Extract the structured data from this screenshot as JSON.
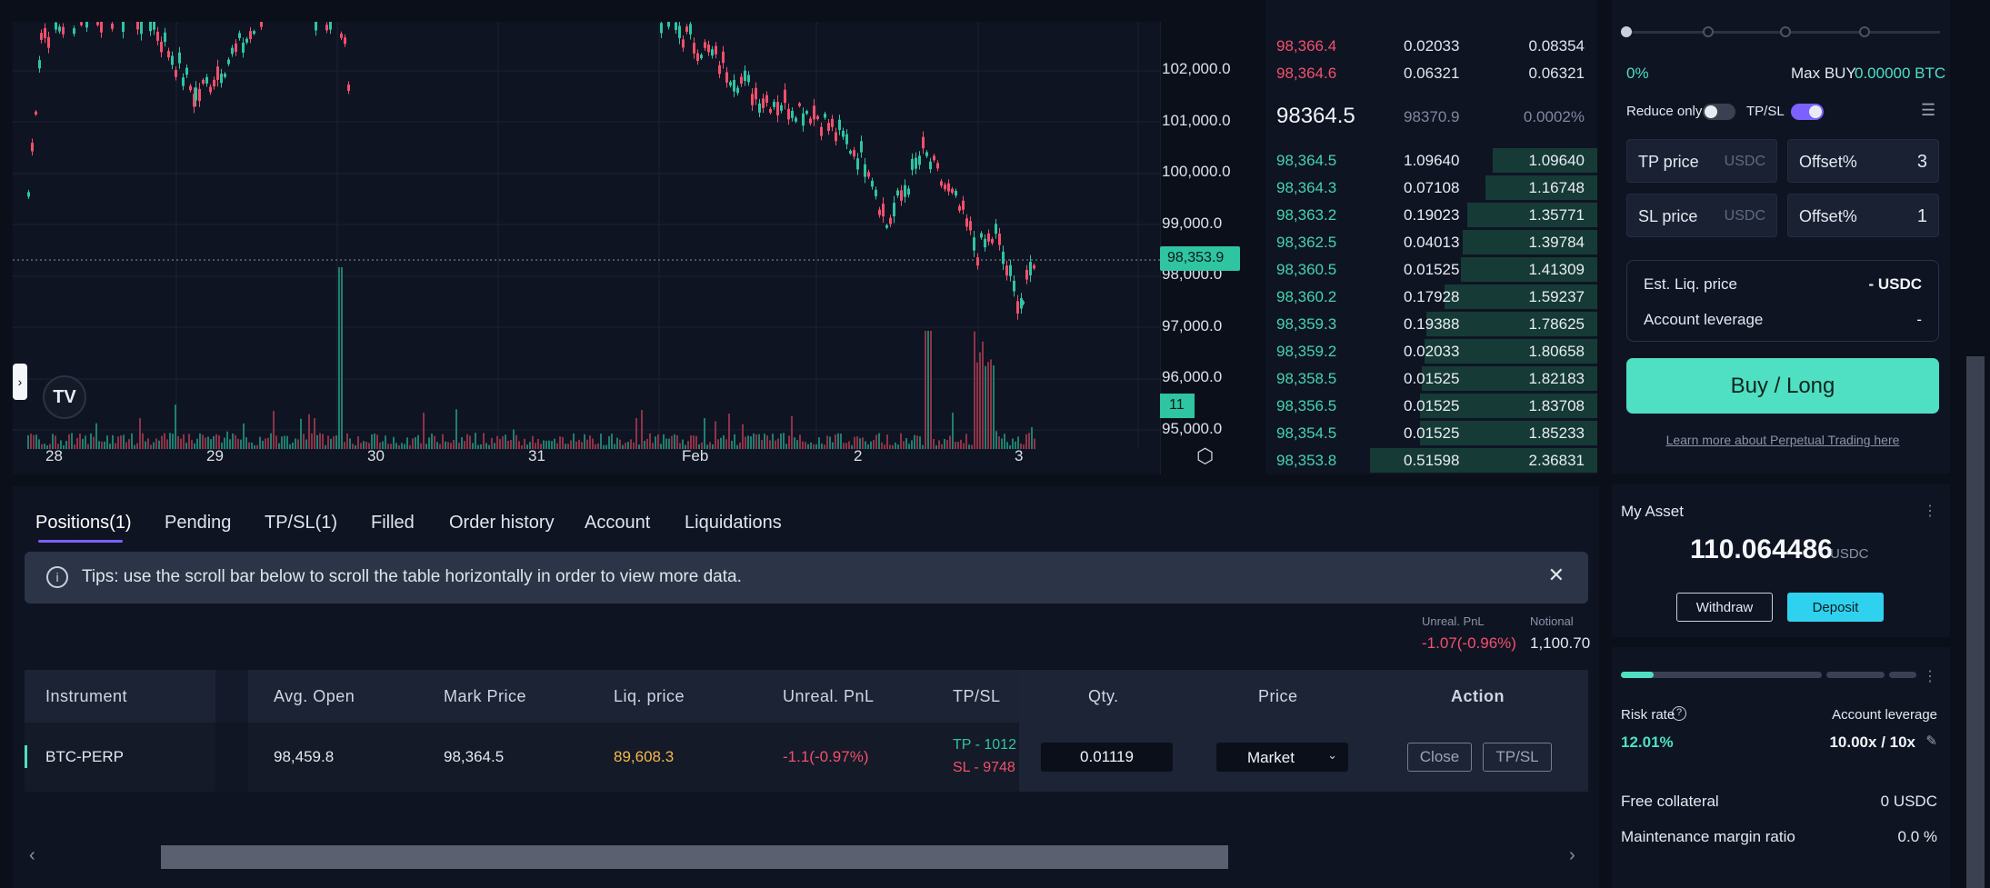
{
  "chart": {
    "y_ticks": [
      "102,000.0",
      "101,000.0",
      "100,000.0",
      "99,000.0",
      "98,000.0",
      "97,000.0",
      "96,000.0",
      "95,000.0"
    ],
    "x_ticks": [
      "28",
      "29",
      "30",
      "31",
      "Feb",
      "2",
      "3"
    ],
    "last_price_tag": "98,353.9",
    "count_tag": "11",
    "colors": {
      "up": "#2fc4a2",
      "down": "#f3506b",
      "bg": "#0f1423"
    }
  },
  "orderbook": {
    "asks": [
      {
        "price": "98,366.4",
        "size": "0.02033",
        "total": "0.08354"
      },
      {
        "price": "98,364.6",
        "size": "0.06321",
        "total": "0.06321"
      }
    ],
    "mid": {
      "price": "98364.5",
      "mark": "98370.9",
      "spread": "0.0002%"
    },
    "bids": [
      {
        "price": "98,364.5",
        "size": "1.09640",
        "total": "1.09640",
        "depth": 0.46
      },
      {
        "price": "98,364.3",
        "size": "0.07108",
        "total": "1.16748",
        "depth": 0.49
      },
      {
        "price": "98,363.2",
        "size": "0.19023",
        "total": "1.35771",
        "depth": 0.57
      },
      {
        "price": "98,362.5",
        "size": "0.04013",
        "total": "1.39784",
        "depth": 0.59
      },
      {
        "price": "98,360.5",
        "size": "0.01525",
        "total": "1.41309",
        "depth": 0.6
      },
      {
        "price": "98,360.2",
        "size": "0.17928",
        "total": "1.59237",
        "depth": 0.67
      },
      {
        "price": "98,359.3",
        "size": "0.19388",
        "total": "1.78625",
        "depth": 0.75
      },
      {
        "price": "98,359.2",
        "size": "0.02033",
        "total": "1.80658",
        "depth": 0.76
      },
      {
        "price": "98,358.5",
        "size": "0.01525",
        "total": "1.82183",
        "depth": 0.77
      },
      {
        "price": "98,356.5",
        "size": "0.01525",
        "total": "1.83708",
        "depth": 0.78
      },
      {
        "price": "98,354.5",
        "size": "0.01525",
        "total": "1.85233",
        "depth": 0.78
      },
      {
        "price": "98,353.8",
        "size": "0.51598",
        "total": "2.36831",
        "depth": 1.0
      }
    ]
  },
  "order_form": {
    "slider_pct": "0%",
    "max_buy_label": "Max BUY",
    "max_buy_value": "0.00000 BTC",
    "reduce_only": "Reduce only",
    "tpsl": "TP/SL",
    "tp_price": "TP price",
    "sl_price": "SL price",
    "unit": "USDC",
    "offset": "Offset%",
    "tp_offset": "3",
    "sl_offset": "1",
    "est_liq_label": "Est. Liq. price",
    "est_liq_value": "- USDC",
    "acct_lev_label": "Account leverage",
    "acct_lev_value": "-",
    "buy_label": "Buy / Long",
    "learn_more": "Learn more about Perpetual Trading here"
  },
  "asset": {
    "title": "My Asset",
    "amount": "110.064486",
    "unit": "USDC",
    "withdraw": "Withdraw",
    "deposit": "Deposit"
  },
  "risk": {
    "risk_label": "Risk rate",
    "risk_value": "12.01%",
    "lev_label": "Account leverage",
    "lev_value": "10.00x / 10x",
    "free_label": "Free collateral",
    "free_value": "0 USDC",
    "mm_label": "Maintenance margin ratio",
    "mm_value": "0.0 %"
  },
  "tabs": [
    "Positions(1)",
    "Pending",
    "TP/SL(1)",
    "Filled",
    "Order history",
    "Account",
    "Liquidations"
  ],
  "tips": "Tips: use the scroll bar below to scroll the table horizontally in order to view more data.",
  "summary": {
    "unreal_label": "Unreal. PnL",
    "unreal_value": "-1.07(-0.96%)",
    "notional_label": "Notional",
    "notional_value": "1,100.70"
  },
  "table": {
    "headers": [
      "Instrument",
      "Avg. Open",
      "Mark Price",
      "Liq. price",
      "Unreal. PnL",
      "TP/SL",
      "Qty.",
      "Price",
      "Action"
    ],
    "row": {
      "instrument": "BTC-PERP",
      "avg_open": "98,459.8",
      "mark_price": "98,364.5",
      "liq_price": "89,608.3",
      "unreal_pnl": "-1.1(-0.97%)",
      "tp": "TP - 1012",
      "sl": "SL - 9748",
      "qty": "0.01119",
      "price": "Market",
      "close": "Close",
      "tpsl": "TP/SL"
    }
  }
}
